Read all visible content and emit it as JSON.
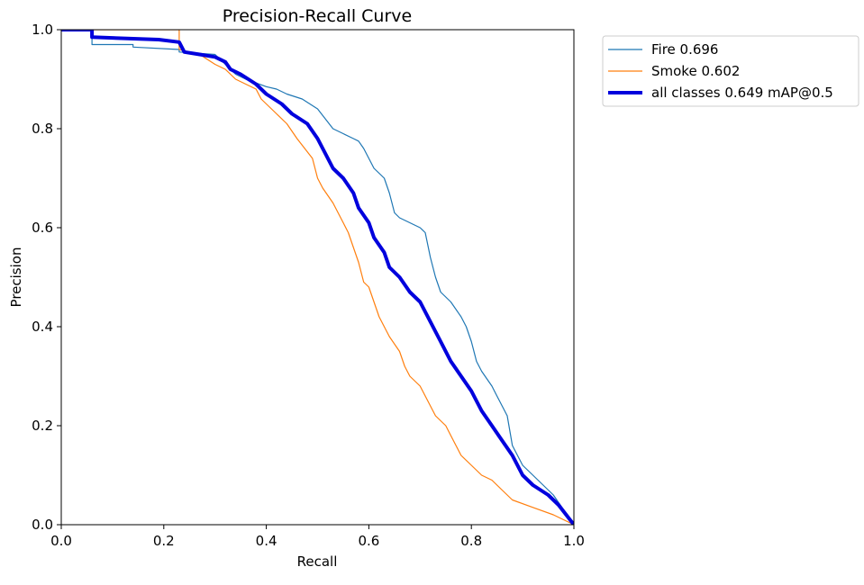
{
  "chart_data": {
    "type": "line",
    "title": "Precision-Recall Curve",
    "xlabel": "Recall",
    "ylabel": "Precision",
    "xlim": [
      0,
      1
    ],
    "ylim": [
      0,
      1
    ],
    "xticks": [
      "0.0",
      "0.2",
      "0.4",
      "0.6",
      "0.8",
      "1.0"
    ],
    "yticks": [
      "0.0",
      "0.2",
      "0.4",
      "0.6",
      "0.8",
      "1.0"
    ],
    "grid": false,
    "legend_position": "outside-top-right",
    "series": [
      {
        "name": "Fire 0.696",
        "color": "#1f77b4",
        "width": "thin",
        "x": [
          0,
          0.06,
          0.06,
          0.14,
          0.14,
          0.23,
          0.23,
          0.3,
          0.34,
          0.36,
          0.4,
          0.42,
          0.44,
          0.47,
          0.5,
          0.53,
          0.57,
          0.58,
          0.59,
          0.6,
          0.61,
          0.63,
          0.64,
          0.65,
          0.66,
          0.7,
          0.71,
          0.72,
          0.73,
          0.74,
          0.76,
          0.78,
          0.79,
          0.8,
          0.81,
          0.82,
          0.84,
          0.85,
          0.86,
          0.87,
          0.88,
          0.9,
          0.93,
          0.96,
          0.98,
          1.0
        ],
        "y": [
          1.0,
          1.0,
          0.97,
          0.97,
          0.965,
          0.96,
          0.955,
          0.95,
          0.91,
          0.9,
          0.885,
          0.88,
          0.87,
          0.86,
          0.84,
          0.8,
          0.78,
          0.775,
          0.76,
          0.74,
          0.72,
          0.7,
          0.67,
          0.63,
          0.62,
          0.6,
          0.59,
          0.54,
          0.5,
          0.47,
          0.45,
          0.42,
          0.4,
          0.37,
          0.33,
          0.31,
          0.28,
          0.26,
          0.24,
          0.22,
          0.16,
          0.12,
          0.09,
          0.06,
          0.03,
          0.0
        ]
      },
      {
        "name": "Smoke 0.602",
        "color": "#ff7f0e",
        "width": "thin",
        "x": [
          0,
          0.23,
          0.23,
          0.27,
          0.3,
          0.32,
          0.33,
          0.34,
          0.38,
          0.39,
          0.42,
          0.44,
          0.46,
          0.49,
          0.5,
          0.51,
          0.53,
          0.54,
          0.55,
          0.56,
          0.57,
          0.58,
          0.59,
          0.6,
          0.61,
          0.62,
          0.63,
          0.64,
          0.66,
          0.67,
          0.68,
          0.7,
          0.71,
          0.73,
          0.75,
          0.76,
          0.77,
          0.78,
          0.8,
          0.82,
          0.84,
          0.86,
          0.88,
          0.92,
          0.96,
          1.0
        ],
        "y": [
          1.0,
          1.0,
          0.96,
          0.95,
          0.93,
          0.92,
          0.91,
          0.9,
          0.88,
          0.86,
          0.83,
          0.81,
          0.78,
          0.74,
          0.7,
          0.68,
          0.65,
          0.63,
          0.61,
          0.59,
          0.56,
          0.53,
          0.49,
          0.48,
          0.45,
          0.42,
          0.4,
          0.38,
          0.35,
          0.32,
          0.3,
          0.28,
          0.26,
          0.22,
          0.2,
          0.18,
          0.16,
          0.14,
          0.12,
          0.1,
          0.09,
          0.07,
          0.05,
          0.035,
          0.02,
          0.0
        ]
      },
      {
        "name": "all classes 0.649 mAP@0.5",
        "color": "#0000dd",
        "width": "thick",
        "x": [
          0,
          0.06,
          0.06,
          0.19,
          0.23,
          0.24,
          0.27,
          0.3,
          0.32,
          0.33,
          0.35,
          0.38,
          0.4,
          0.43,
          0.45,
          0.48,
          0.5,
          0.51,
          0.53,
          0.55,
          0.57,
          0.58,
          0.6,
          0.61,
          0.63,
          0.64,
          0.66,
          0.68,
          0.7,
          0.72,
          0.74,
          0.76,
          0.78,
          0.8,
          0.82,
          0.84,
          0.86,
          0.88,
          0.9,
          0.92,
          0.95,
          0.97,
          1.0
        ],
        "y": [
          1.0,
          1.0,
          0.985,
          0.98,
          0.975,
          0.955,
          0.95,
          0.945,
          0.935,
          0.92,
          0.91,
          0.89,
          0.87,
          0.85,
          0.83,
          0.81,
          0.78,
          0.76,
          0.72,
          0.7,
          0.67,
          0.64,
          0.61,
          0.58,
          0.55,
          0.52,
          0.5,
          0.47,
          0.45,
          0.41,
          0.37,
          0.33,
          0.3,
          0.27,
          0.23,
          0.2,
          0.17,
          0.14,
          0.1,
          0.08,
          0.06,
          0.04,
          0.0
        ]
      }
    ]
  }
}
